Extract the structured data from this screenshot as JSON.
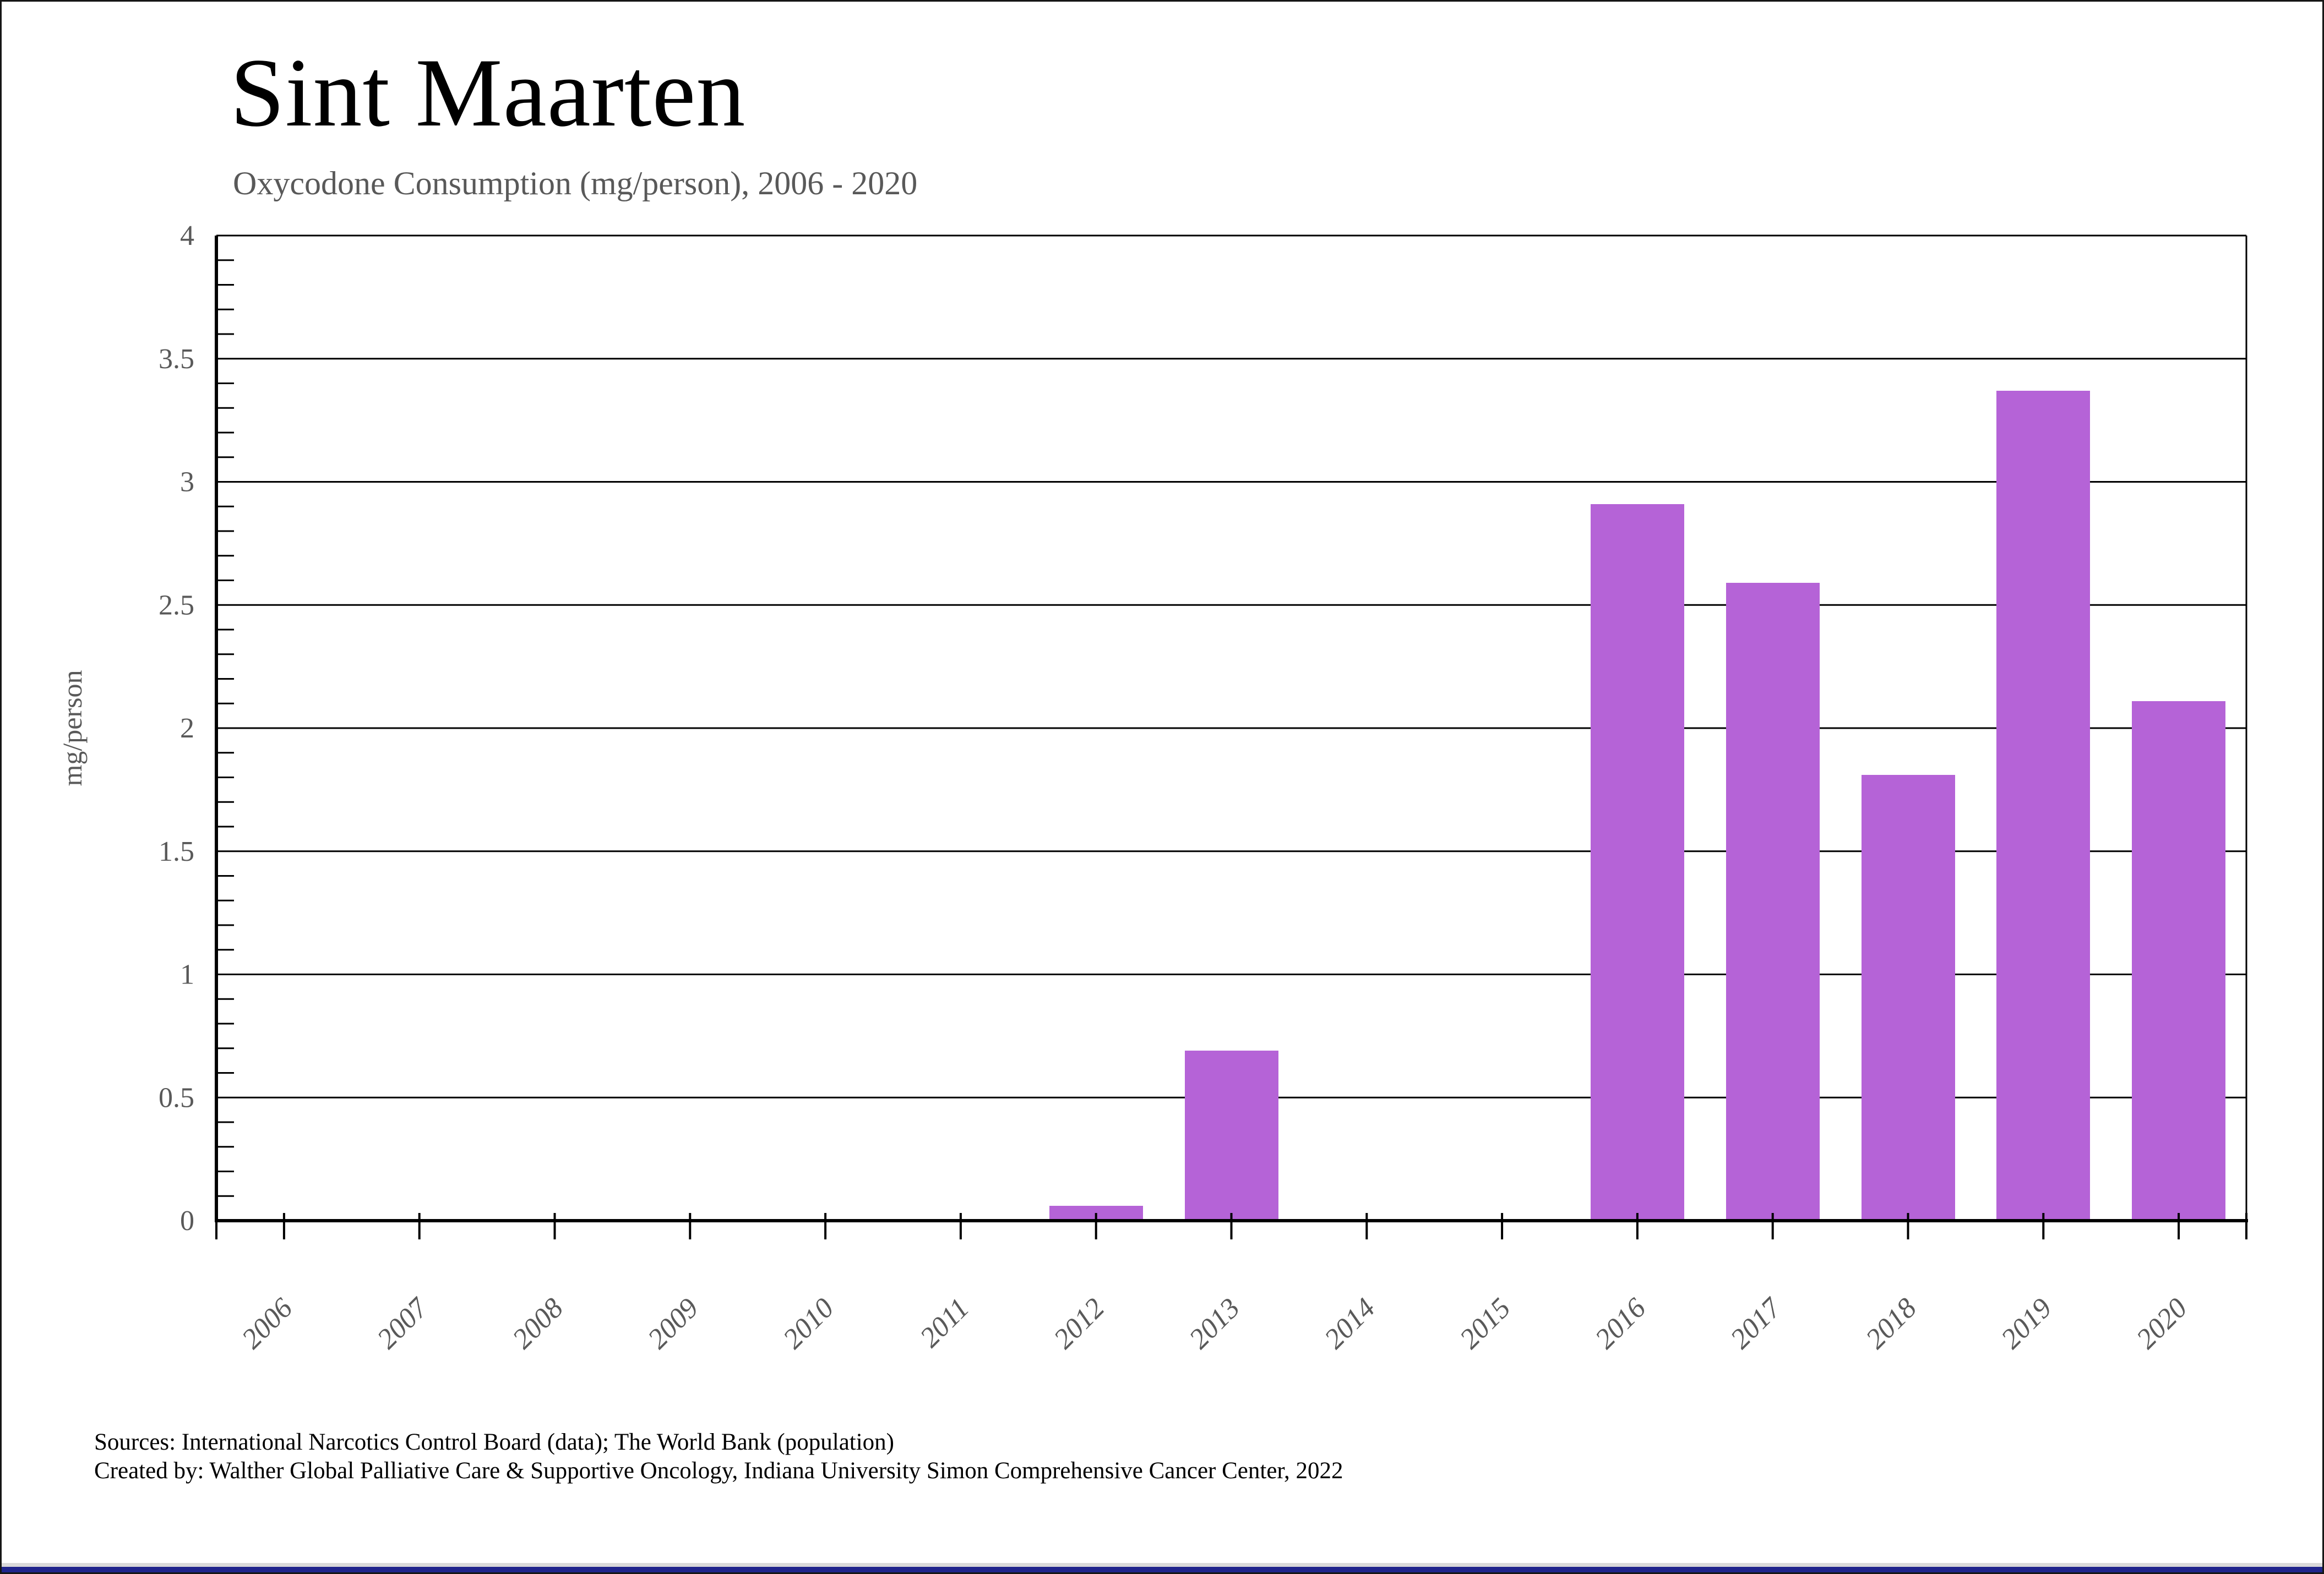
{
  "page": {
    "title": "Sint Maarten",
    "subtitle": "Oxycodone Consumption (mg/person), 2006 - 2020",
    "footer": {
      "line1": "Sources: International Narcotics Control Board (data); The World Bank (population)",
      "line2": "Created by: Walther Global Palliative Care & Supportive Oncology, Indiana University Simon Comprehensive Cancer Center, 2022"
    }
  },
  "colors": {
    "background": "#ffffff",
    "bar": "#b563d7",
    "grid": "#000000",
    "axis": "#000000",
    "tick_label": "#595959",
    "axis_title": "#595959",
    "title": "#000000",
    "footer": "#000000",
    "bottom_bar": "#20248c",
    "bottom_bar_inner": "#d9d9d9"
  },
  "chart_data": {
    "type": "bar",
    "title": "Sint Maarten",
    "subtitle": "Oxycodone Consumption (mg/person), 2006 - 2020",
    "categories": [
      "2006",
      "2007",
      "2008",
      "2009",
      "2010",
      "2011",
      "2012",
      "2013",
      "2014",
      "2015",
      "2016",
      "2017",
      "2018",
      "2019",
      "2020"
    ],
    "values": [
      0,
      0,
      0,
      0,
      0,
      0,
      0.06,
      0.69,
      0,
      0,
      2.91,
      2.59,
      1.81,
      3.37,
      2.11
    ],
    "xlabel": "",
    "ylabel": "mg/person",
    "ylim": [
      0,
      4
    ],
    "ytick_step": 0.5,
    "y_minor_step": 0.1,
    "yticks": [
      "0",
      "0.5",
      "1",
      "1.5",
      "2",
      "2.5",
      "3",
      "3.5",
      "4"
    ],
    "grid": true,
    "legend_position": "none",
    "bar_color": "#b563d7",
    "x_label_rotation_deg": -45,
    "x_label_style": "italic"
  }
}
